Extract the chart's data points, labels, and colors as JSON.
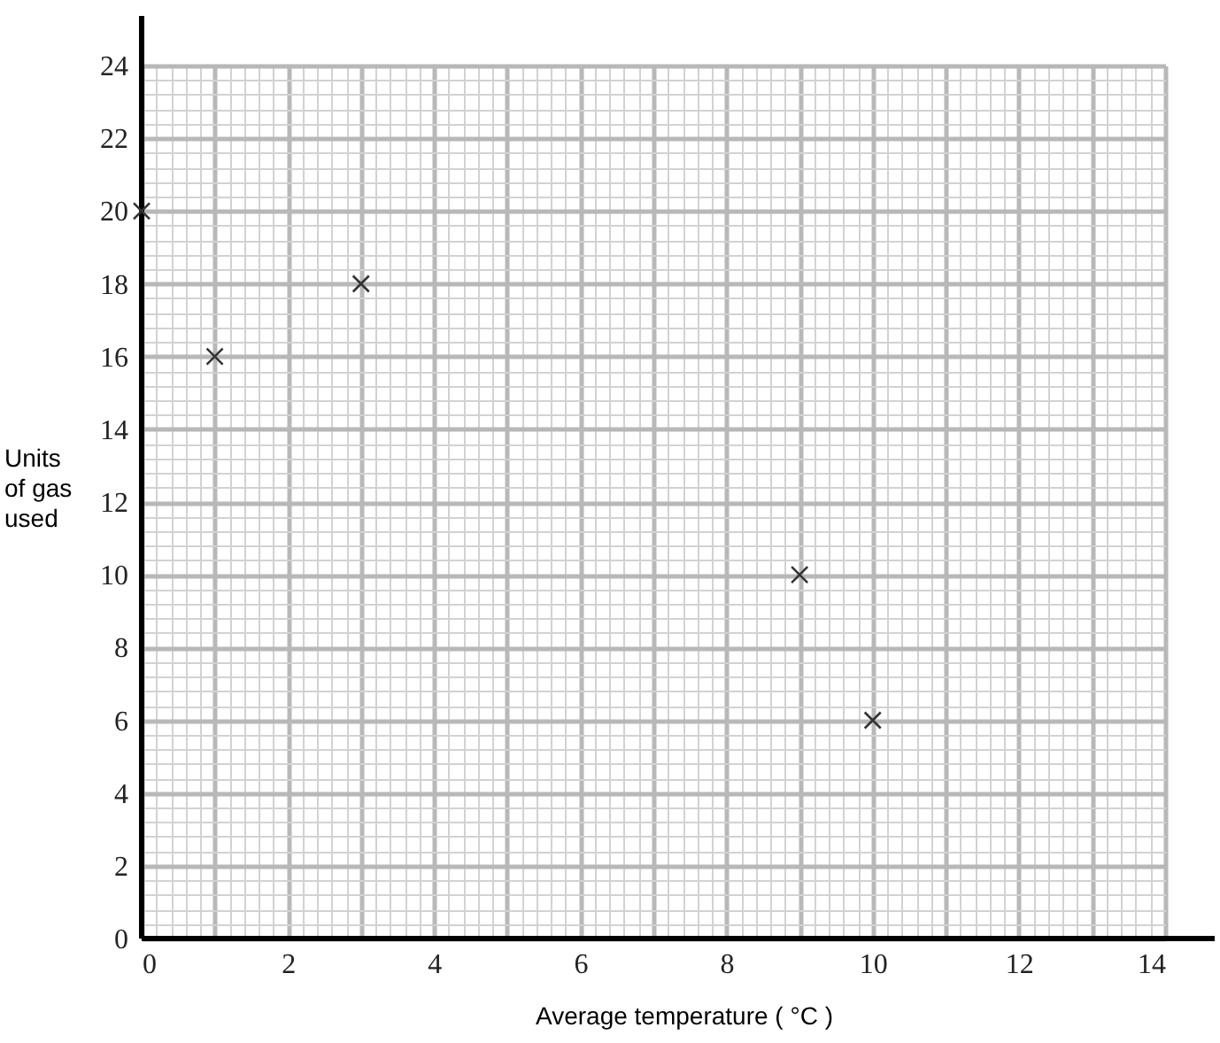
{
  "chart_data": {
    "type": "scatter",
    "xlabel": "Average temperature ( °C )",
    "ylabel": "Units of gas used",
    "x": [
      0,
      1,
      3,
      9,
      10
    ],
    "series": [
      {
        "color": "#333333",
        "values": [
          20,
          16,
          18,
          10,
          6
        ]
      }
    ],
    "xlim": [
      0,
      14
    ],
    "ylim": [
      0,
      24
    ],
    "xticks": [
      0,
      2,
      4,
      6,
      8,
      10,
      12,
      14
    ],
    "yticks": [
      0,
      2,
      4,
      6,
      8,
      10,
      12,
      14,
      16,
      18,
      20,
      22,
      24
    ],
    "grid": true,
    "marker": "cross"
  }
}
